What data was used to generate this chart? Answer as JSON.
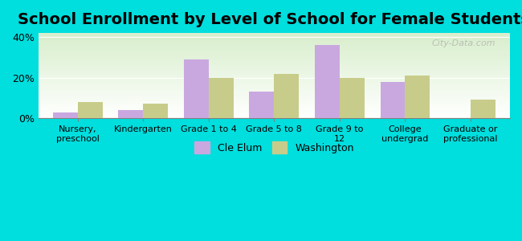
{
  "title": "School Enrollment by Level of School for Female Students",
  "categories": [
    "Nursery,\npreschool",
    "Kindergarten",
    "Grade 1 to 4",
    "Grade 5 to 8",
    "Grade 9 to\n12",
    "College\nundergrad",
    "Graduate or\nprofessional"
  ],
  "cle_elum": [
    3.0,
    4.0,
    29.0,
    13.0,
    36.0,
    18.0,
    0.0
  ],
  "washington": [
    8.0,
    7.0,
    20.0,
    22.0,
    20.0,
    21.0,
    9.0
  ],
  "cle_elum_color": "#c9a8e0",
  "washington_color": "#c8cc8a",
  "background_outer": "#00dede",
  "background_inner_top": "#e8f5e0",
  "background_inner_bottom": "#ffffff",
  "ylim": [
    0,
    42
  ],
  "yticks": [
    0,
    20,
    40
  ],
  "ytick_labels": [
    "0%",
    "20%",
    "40%"
  ],
  "legend_cle_elum": "Cle Elum",
  "legend_washington": "Washington",
  "title_fontsize": 14,
  "bar_width": 0.38,
  "watermark": "City-Data.com"
}
